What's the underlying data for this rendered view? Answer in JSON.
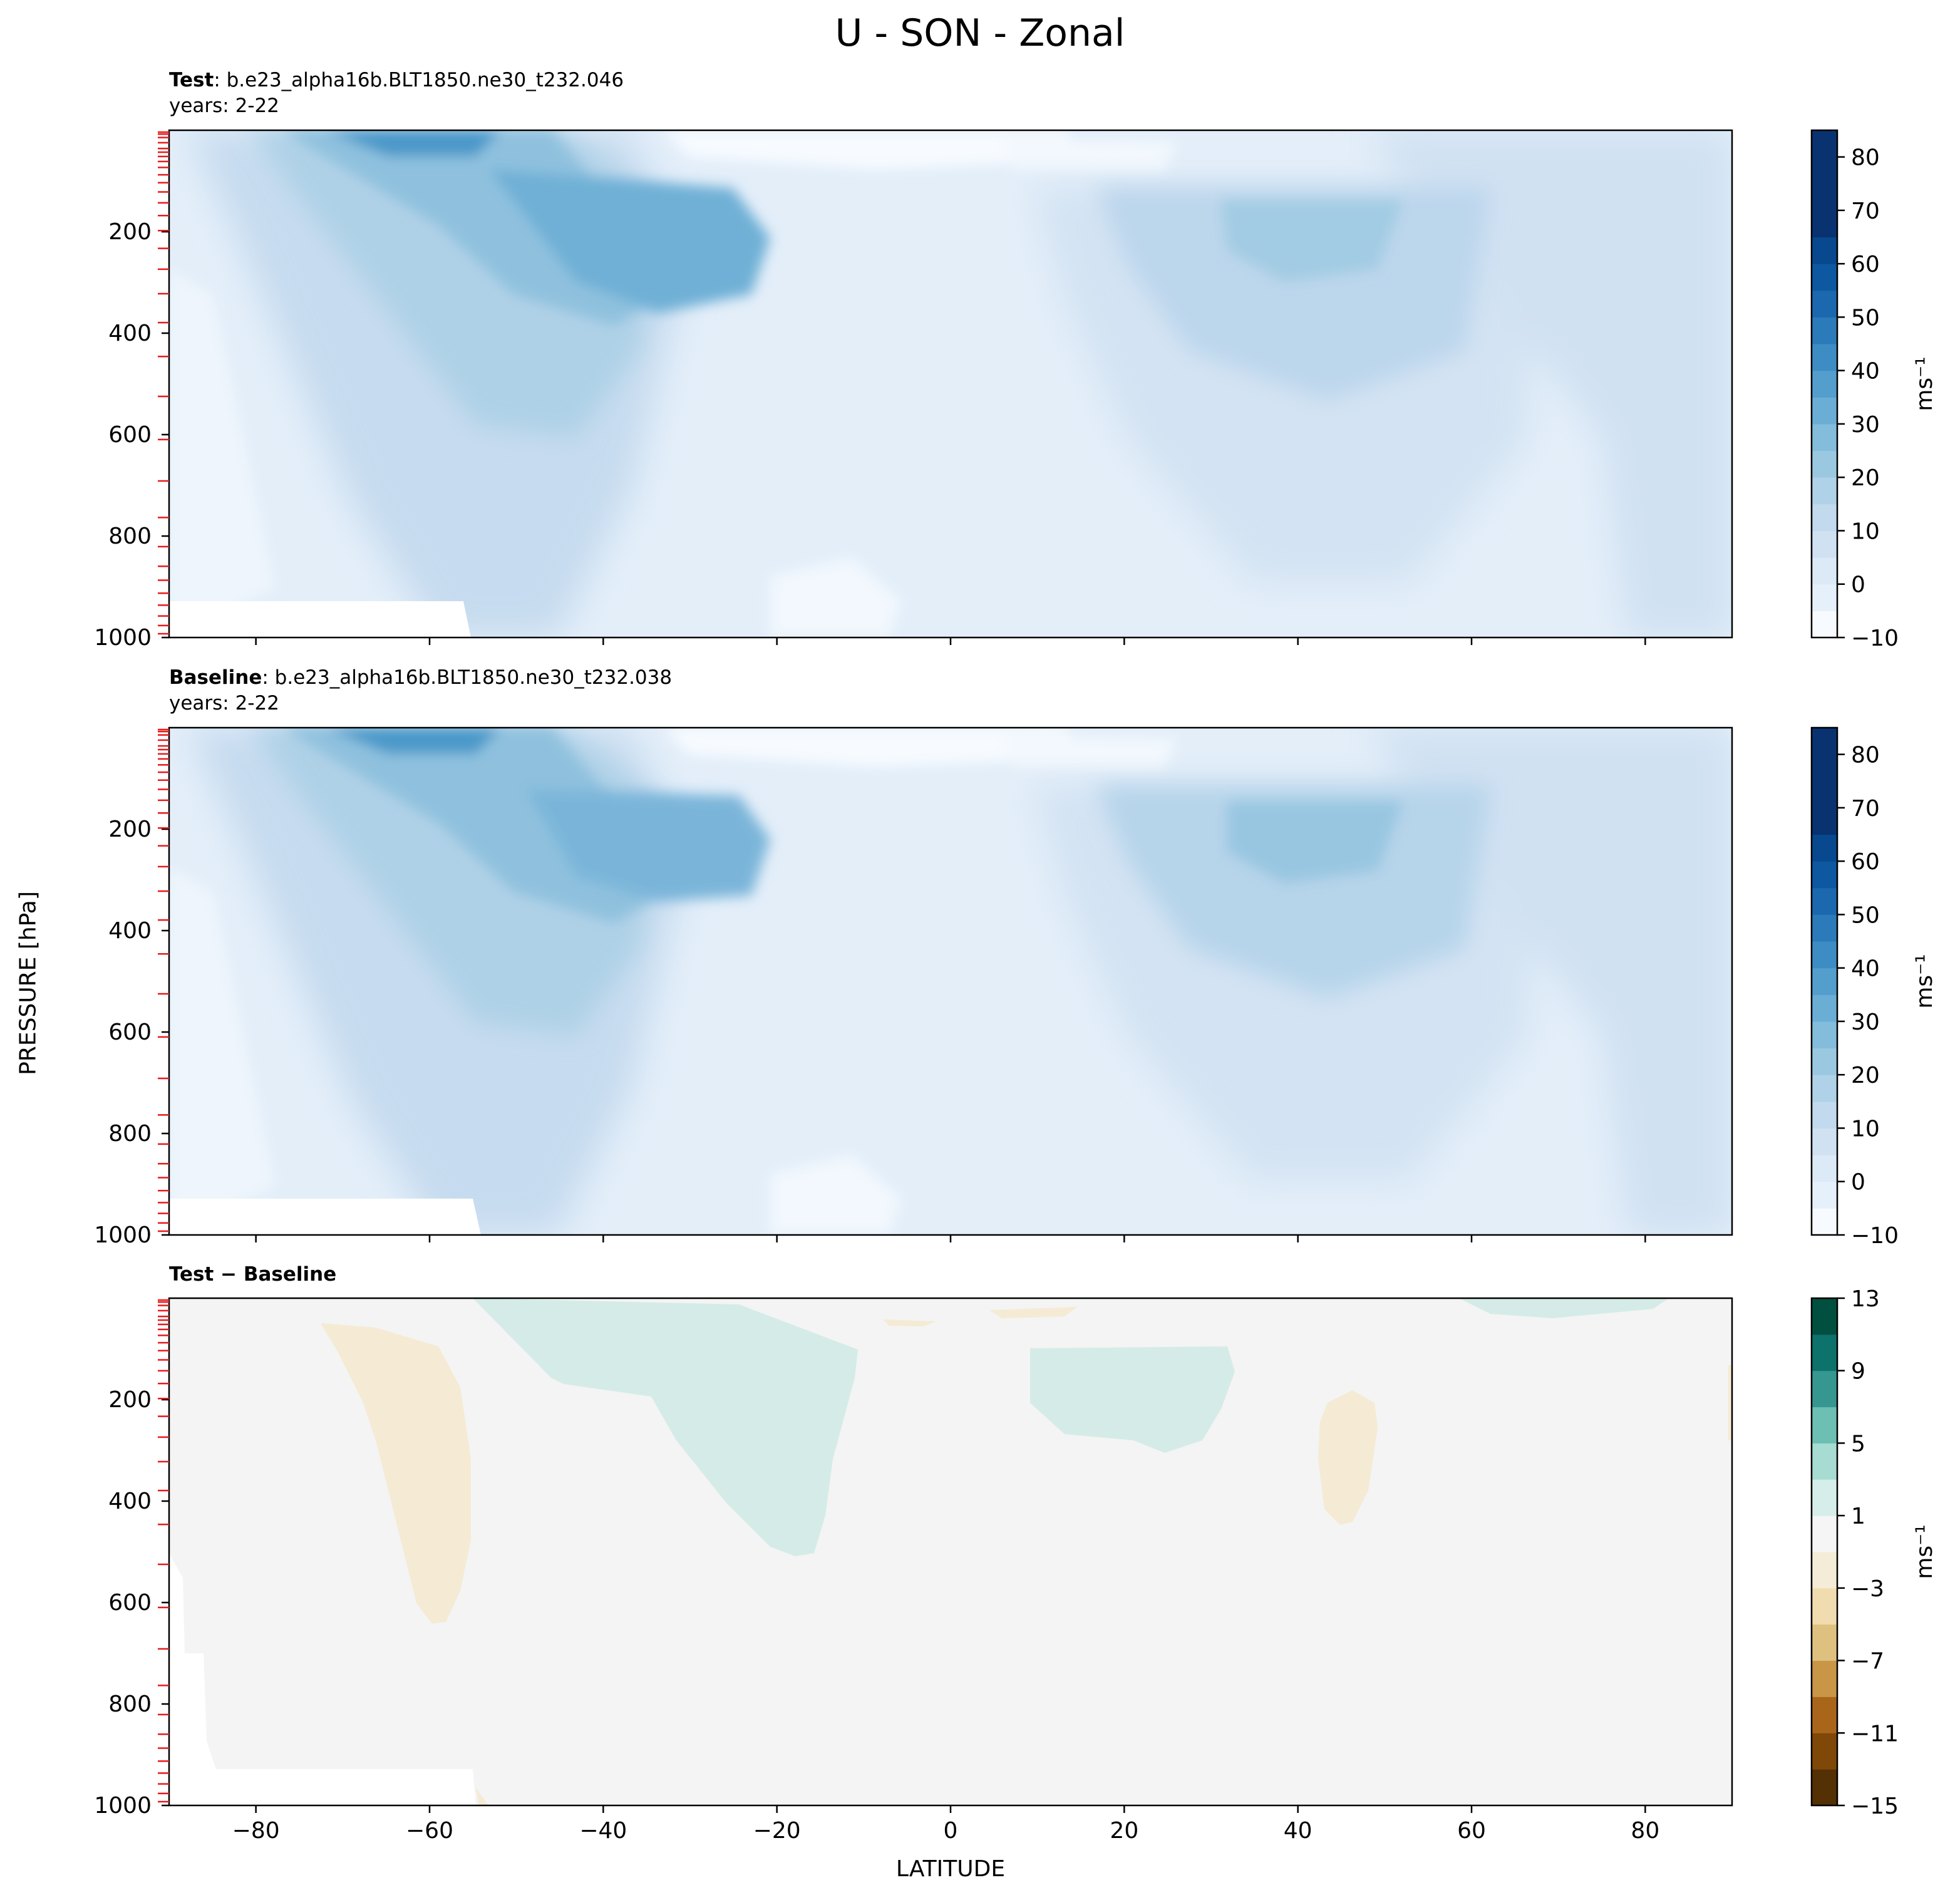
{
  "figure": {
    "title": "U - SON - Zonal",
    "ylabel": "PRESSURE [hPa]",
    "xlabel": "LATITUDE"
  },
  "panels": [
    {
      "title_bold": "Test",
      "title_rest": ": b.e23_alpha16b.BLT1850.ne30_t232.046",
      "years": "years: 2-22"
    },
    {
      "title_bold": "Baseline",
      "title_rest": ": b.e23_alpha16b.BLT1850.ne30_t232.038",
      "years": "years: 2-22"
    },
    {
      "title_bold": "Test − Baseline",
      "title_rest": "",
      "years": ""
    }
  ],
  "colorbars": {
    "absolute": {
      "ticks": [
        "−10",
        "0",
        "10",
        "20",
        "30",
        "40",
        "50",
        "60",
        "70",
        "80"
      ],
      "label": "ms⁻¹",
      "colors": [
        "#f7fbff",
        "#e6f0fa",
        "#dce9f6",
        "#d0e1f2",
        "#c2d9ee",
        "#b0d2e8",
        "#9ac8e0",
        "#84bcdb",
        "#6aaed6",
        "#539ecd",
        "#3d8dc4",
        "#2b7bba",
        "#1c68af",
        "#0d58a1",
        "#08488e",
        "#083370"
      ]
    },
    "difference": {
      "ticks": [
        "−15",
        "−11",
        "−7",
        "−3",
        "1",
        "5",
        "9",
        "13"
      ],
      "label": "ms⁻¹",
      "colors": [
        "#543005",
        "#7f4808",
        "#a9661a",
        "#c99547",
        "#dfc17f",
        "#f0dcae",
        "#f5ecd7",
        "#f5f5f5",
        "#d5eeea",
        "#a6dcd2",
        "#6cbfb2",
        "#35978f",
        "#0d726b",
        "#01503f"
      ]
    }
  },
  "chart_data": [
    {
      "type": "heatmap",
      "panel": "Test",
      "subtitle": "b.e23_alpha16b.BLT1850.ne30_t232.046",
      "xlabel": "",
      "ylabel": "",
      "x_ticks": [
        -80,
        -60,
        -40,
        -20,
        0,
        20,
        40,
        60,
        80
      ],
      "x_range": [
        -90,
        90
      ],
      "y_ticks": [
        200,
        400,
        600,
        800,
        1000
      ],
      "y_range": [
        1000,
        0
      ],
      "colorbar_range": [
        -10,
        85
      ],
      "features": [
        {
          "lat": -63,
          "pressure": 20,
          "value": 55
        },
        {
          "lat": -30,
          "pressure": 200,
          "value": 45
        },
        {
          "lat": 42,
          "pressure": 200,
          "value": 30
        },
        {
          "lat": 0,
          "pressure": 500,
          "value": 0
        }
      ]
    },
    {
      "type": "heatmap",
      "panel": "Baseline",
      "subtitle": "b.e23_alpha16b.BLT1850.ne30_t232.038",
      "xlabel": "",
      "ylabel": "",
      "x_ticks": [
        -80,
        -60,
        -40,
        -20,
        0,
        20,
        40,
        60,
        80
      ],
      "x_range": [
        -90,
        90
      ],
      "y_ticks": [
        200,
        400,
        600,
        800,
        1000
      ],
      "y_range": [
        1000,
        0
      ],
      "colorbar_range": [
        -10,
        85
      ],
      "features": [
        {
          "lat": -63,
          "pressure": 20,
          "value": 55
        },
        {
          "lat": -30,
          "pressure": 220,
          "value": 40
        },
        {
          "lat": 42,
          "pressure": 200,
          "value": 35
        },
        {
          "lat": 0,
          "pressure": 500,
          "value": 0
        }
      ]
    },
    {
      "type": "heatmap",
      "panel": "Test − Baseline",
      "xlabel": "LATITUDE",
      "ylabel": "",
      "x_ticks": [
        -80,
        -60,
        -40,
        -20,
        0,
        20,
        40,
        60,
        80
      ],
      "x_range": [
        -90,
        90
      ],
      "y_ticks": [
        200,
        400,
        600,
        800,
        1000
      ],
      "y_range": [
        1000,
        0
      ],
      "colorbar_range": [
        -15,
        13
      ],
      "features": [
        {
          "lat": -62,
          "pressure": 350,
          "value": -2
        },
        {
          "lat": -30,
          "pressure": 200,
          "value": 2
        },
        {
          "lat": 20,
          "pressure": 180,
          "value": 2
        },
        {
          "lat": 45,
          "pressure": 300,
          "value": -2
        }
      ]
    }
  ]
}
